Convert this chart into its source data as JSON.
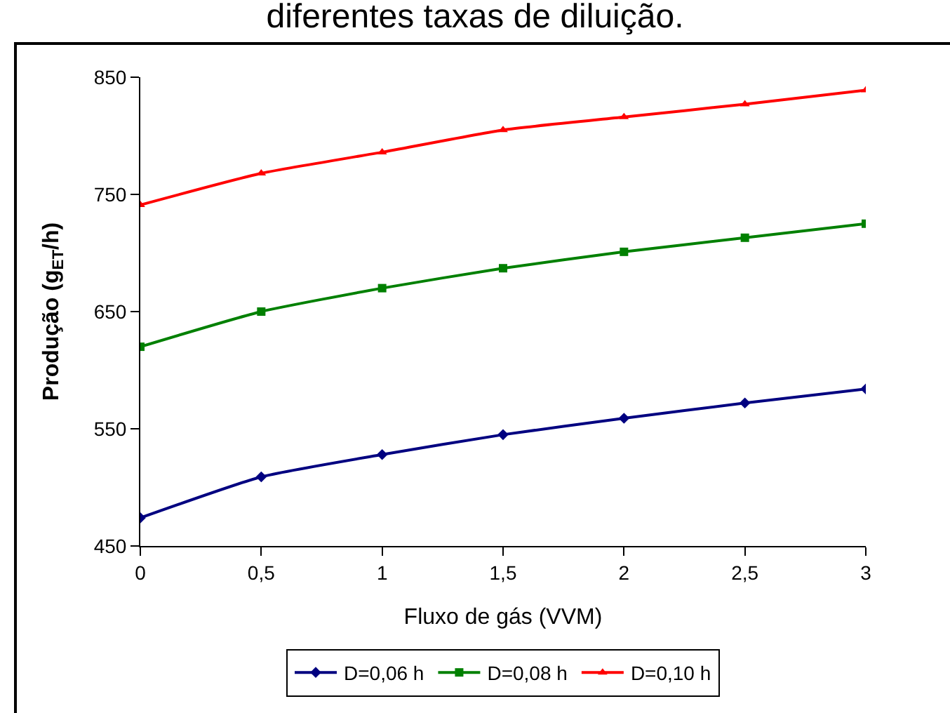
{
  "chart_data": {
    "type": "line",
    "title": "diferentes taxas de diluição.",
    "xlabel": "Fluxo de gás (VVM)",
    "ylabel": "Produção (g$_{ET}$/h)",
    "x": [
      0,
      0.5,
      1,
      1.5,
      2,
      2.5,
      3
    ],
    "xlim": [
      0,
      3
    ],
    "xticks": [
      {
        "value": 0,
        "label": "0"
      },
      {
        "value": 0.5,
        "label": "0,5"
      },
      {
        "value": 1,
        "label": "1"
      },
      {
        "value": 1.5,
        "label": "1,5"
      },
      {
        "value": 2,
        "label": "2"
      },
      {
        "value": 2.5,
        "label": "2,5"
      },
      {
        "value": 3,
        "label": "3"
      }
    ],
    "ylim": [
      450,
      850
    ],
    "yticks": [
      450,
      550,
      650,
      750,
      850
    ],
    "grid": false,
    "legend": "bottom",
    "series": [
      {
        "name": "D=0,06 h",
        "color": "#000080",
        "marker": "diamond",
        "values": [
          474,
          509,
          528,
          545,
          559,
          572,
          584
        ]
      },
      {
        "name": "D=0,08 h",
        "color": "#008000",
        "marker": "square",
        "values": [
          620,
          650,
          670,
          687,
          701,
          713,
          725
        ]
      },
      {
        "name": "D=0,10 h",
        "color": "#ff0000",
        "marker": "triangle",
        "values": [
          741,
          768,
          786,
          805,
          816,
          827,
          839
        ]
      }
    ]
  }
}
